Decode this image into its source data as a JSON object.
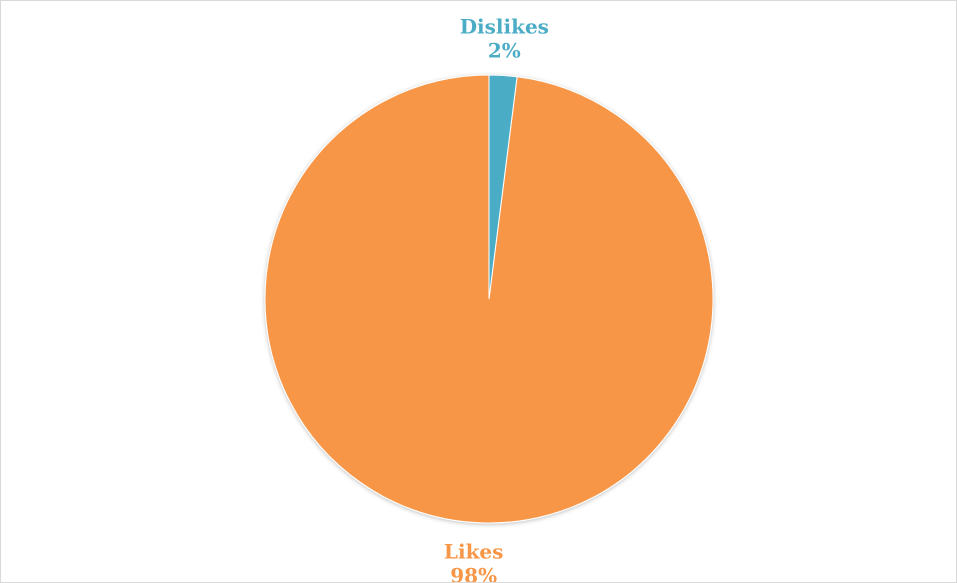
{
  "chart_data": {
    "type": "pie",
    "title": "",
    "slices": [
      {
        "label": "Likes",
        "value": 98,
        "value_label": "98%",
        "color": "#F79646"
      },
      {
        "label": "Dislikes",
        "value": 2,
        "value_label": "2%",
        "color": "#4BACC6"
      }
    ],
    "start_angle_deg": 0,
    "direction": "counterclockwise",
    "legend": "none",
    "data_labels": "outside-end"
  }
}
